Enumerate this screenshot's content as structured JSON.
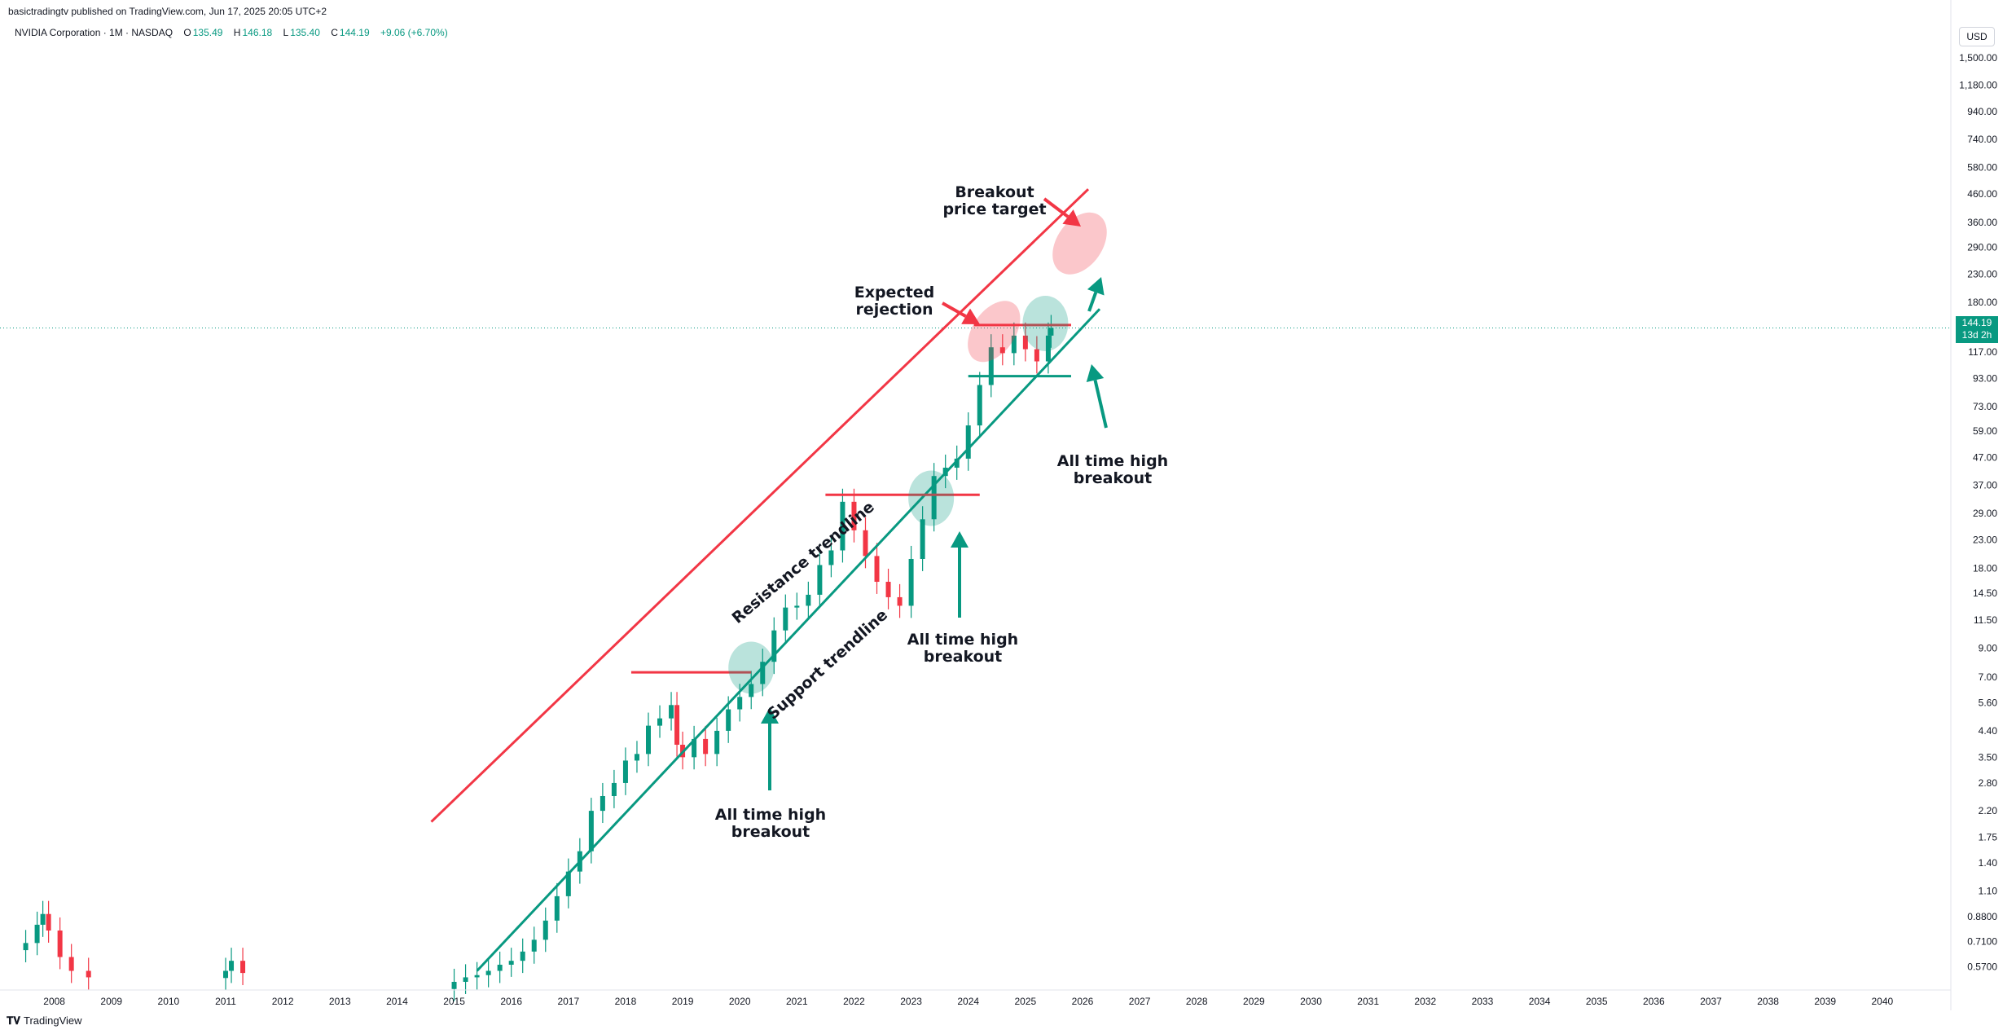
{
  "published": "basictradingtv published on TradingView.com, Jun 17, 2025 20:05 UTC+2",
  "legend": {
    "symbol": "NVIDIA Corporation · 1M · NASDAQ",
    "open_label": "O",
    "open": "135.49",
    "high_label": "H",
    "high": "146.18",
    "low_label": "L",
    "low": "135.40",
    "close_label": "C",
    "close": "144.19",
    "change": "+9.06 (+6.70%)"
  },
  "currency": "USD",
  "last_price": {
    "value": "144.19",
    "countdown": "13d 2h"
  },
  "footer": {
    "logo_text": "TradingView"
  },
  "colors": {
    "up": "#089981",
    "down": "#F23645",
    "resistance": "#F23645",
    "support": "#089981",
    "text": "#131722",
    "axis_text": "#131722"
  },
  "chart_data": {
    "type": "candlestick",
    "yscale": "log",
    "ylim": [
      0.5,
      2000
    ],
    "xlim": [
      2007.5,
      2041.2
    ],
    "x_ticks": [
      "2008",
      "2009",
      "2010",
      "2011",
      "2012",
      "2013",
      "2014",
      "2015",
      "2016",
      "2017",
      "2018",
      "2019",
      "2020",
      "2021",
      "2022",
      "2023",
      "2024",
      "2025",
      "2026",
      "2027",
      "2028",
      "2029",
      "2030",
      "2031",
      "2032",
      "2033",
      "2034",
      "2035",
      "2036",
      "2037",
      "2038",
      "2039",
      "2040"
    ],
    "y_ticks": [
      "1,500.00",
      "1,180.00",
      "940.00",
      "740.00",
      "580.00",
      "460.00",
      "360.00",
      "290.00",
      "230.00",
      "180.00",
      "117.00",
      "93.00",
      "73.00",
      "59.00",
      "47.00",
      "37.00",
      "29.00",
      "23.00",
      "18.00",
      "14.50",
      "11.50",
      "9.00",
      "7.00",
      "5.60",
      "4.40",
      "3.50",
      "2.80",
      "2.20",
      "1.75",
      "1.40",
      "1.10",
      "0.8800",
      "0.7100",
      "0.5700"
    ],
    "y_tick_values": [
      1500,
      1180,
      940,
      740,
      580,
      460,
      360,
      290,
      230,
      180,
      117,
      93,
      73,
      59,
      47,
      37,
      29,
      23,
      18,
      14.5,
      11.5,
      9,
      7,
      5.6,
      4.4,
      3.5,
      2.8,
      2.2,
      1.75,
      1.4,
      1.1,
      0.88,
      0.71,
      0.57
    ],
    "series_close": [
      [
        2007.5,
        0.7
      ],
      [
        2007.7,
        0.82
      ],
      [
        2007.8,
        0.9
      ],
      [
        2007.9,
        0.78
      ],
      [
        2008.1,
        0.62
      ],
      [
        2008.3,
        0.55
      ],
      [
        2008.6,
        0.52
      ],
      [
        2011.0,
        0.55
      ],
      [
        2011.1,
        0.6
      ],
      [
        2011.3,
        0.54
      ],
      [
        2015.0,
        0.5
      ],
      [
        2015.2,
        0.52
      ],
      [
        2015.4,
        0.53
      ],
      [
        2015.6,
        0.55
      ],
      [
        2015.8,
        0.58
      ],
      [
        2016.0,
        0.6
      ],
      [
        2016.2,
        0.65
      ],
      [
        2016.4,
        0.72
      ],
      [
        2016.6,
        0.85
      ],
      [
        2016.8,
        1.05
      ],
      [
        2017.0,
        1.3
      ],
      [
        2017.2,
        1.55
      ],
      [
        2017.4,
        2.2
      ],
      [
        2017.6,
        2.5
      ],
      [
        2017.8,
        2.8
      ],
      [
        2018.0,
        3.4
      ],
      [
        2018.2,
        3.6
      ],
      [
        2018.4,
        4.6
      ],
      [
        2018.6,
        4.9
      ],
      [
        2018.8,
        5.5
      ],
      [
        2018.9,
        3.9
      ],
      [
        2019.0,
        3.5
      ],
      [
        2019.2,
        4.1
      ],
      [
        2019.4,
        3.6
      ],
      [
        2019.6,
        4.4
      ],
      [
        2019.8,
        5.3
      ],
      [
        2020.0,
        5.9
      ],
      [
        2020.2,
        6.6
      ],
      [
        2020.4,
        8.0
      ],
      [
        2020.6,
        10.5
      ],
      [
        2020.8,
        12.8
      ],
      [
        2021.0,
        13.0
      ],
      [
        2021.2,
        14.3
      ],
      [
        2021.4,
        18.5
      ],
      [
        2021.6,
        21.0
      ],
      [
        2021.8,
        32.0
      ],
      [
        2022.0,
        25.0
      ],
      [
        2022.2,
        20.0
      ],
      [
        2022.4,
        16.0
      ],
      [
        2022.6,
        14.0
      ],
      [
        2022.8,
        13.0
      ],
      [
        2023.0,
        19.5
      ],
      [
        2023.2,
        27.5
      ],
      [
        2023.4,
        40.0
      ],
      [
        2023.6,
        43.0
      ],
      [
        2023.8,
        46.5
      ],
      [
        2024.0,
        62.0
      ],
      [
        2024.2,
        88.0
      ],
      [
        2024.4,
        122.0
      ],
      [
        2024.6,
        116.0
      ],
      [
        2024.8,
        135.0
      ],
      [
        2025.0,
        120.0
      ],
      [
        2025.2,
        108.0
      ],
      [
        2025.4,
        135.0
      ],
      [
        2025.45,
        144.19
      ]
    ],
    "trendlines": [
      {
        "name": "Resistance trendline",
        "color": "#F23645",
        "from": [
          2014.6,
          2.0
        ],
        "to": [
          2026.1,
          480
        ]
      },
      {
        "name": "Support trendline",
        "color": "#089981",
        "from": [
          2015.4,
          0.55
        ],
        "to": [
          2026.3,
          170
        ]
      }
    ],
    "horizontal_levels": [
      {
        "color": "#F23645",
        "y": 7.3,
        "x1": 2018.1,
        "x2": 2020.2
      },
      {
        "color": "#F23645",
        "y": 34.0,
        "x1": 2021.5,
        "x2": 2024.2
      },
      {
        "color": "#F23645",
        "y": 148.0,
        "x1": 2024.1,
        "x2": 2025.8
      },
      {
        "color": "#089981",
        "y": 95.0,
        "x1": 2024.0,
        "x2": 2025.8
      }
    ],
    "annotations": [
      "Resistance trendline",
      "Support trendline",
      "All time high\nbreakout",
      "All time high\nbreakout",
      "All time high\nbreakout",
      "Expected\nrejection",
      "Breakout\nprice target"
    ]
  }
}
